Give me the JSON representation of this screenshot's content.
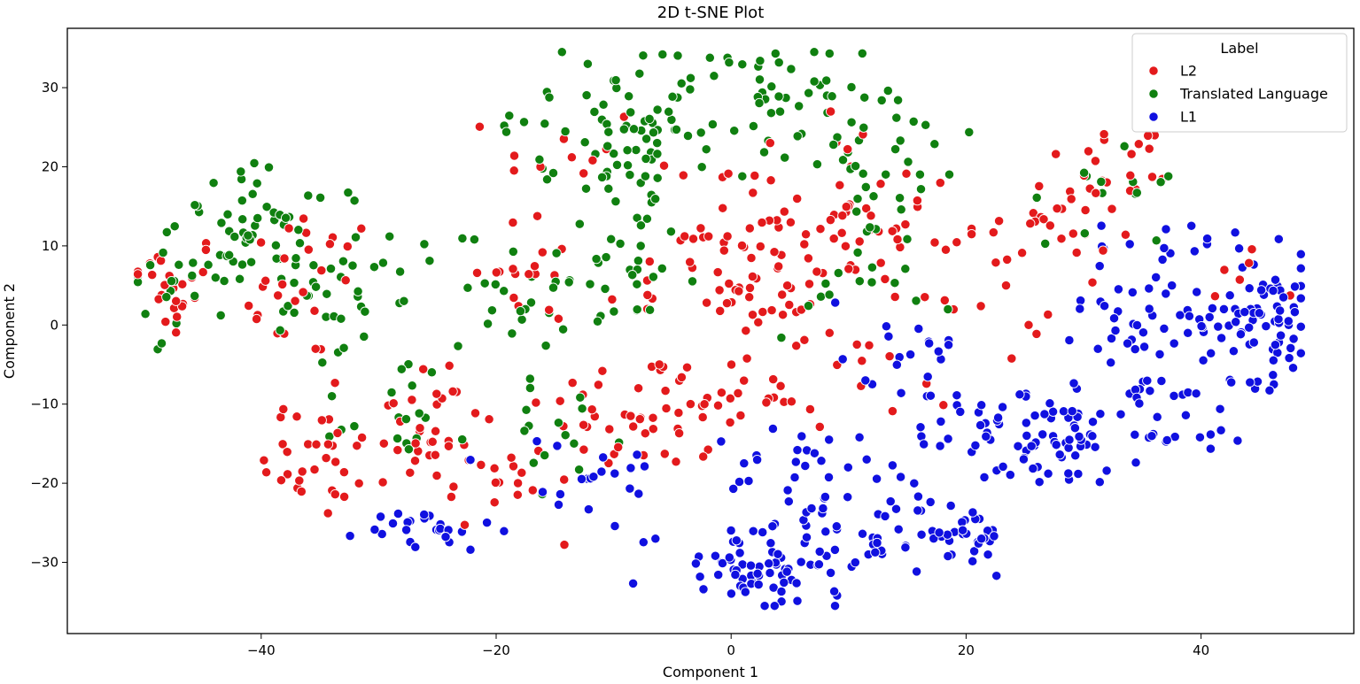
{
  "chart_data": {
    "type": "scatter",
    "title": "2D t-SNE Plot",
    "xlabel": "Component 1",
    "ylabel": "Component 2",
    "xlim": [
      -56.5,
      53
    ],
    "ylim": [
      -39,
      37.5
    ],
    "xticks": [
      -40,
      -20,
      0,
      20,
      40
    ],
    "yticks": [
      -30,
      -20,
      -10,
      0,
      10,
      20,
      30
    ],
    "grid": false,
    "legend": {
      "title": "Label",
      "placement": "top-right",
      "entries": [
        "L2",
        "Translated Language",
        "L1"
      ]
    },
    "series": [
      {
        "name": "L2",
        "color": "#e31a1c",
        "clusters": [
          {
            "cx": -48,
            "cy": 5,
            "sx": 2.5,
            "sy": 3.5,
            "n": 25
          },
          {
            "cx": -36,
            "cy": 5,
            "sx": 3,
            "sy": 5,
            "n": 25
          },
          {
            "cx": -35,
            "cy": -17,
            "sx": 2.5,
            "sy": 4,
            "n": 30
          },
          {
            "cx": -26,
            "cy": -13,
            "sx": 3,
            "sy": 5,
            "n": 35
          },
          {
            "cx": -20,
            "cy": -20,
            "sx": 2.5,
            "sy": 3,
            "n": 15
          },
          {
            "cx": -17,
            "cy": 6,
            "sx": 3,
            "sy": 3,
            "n": 15
          },
          {
            "cx": -8,
            "cy": -11,
            "sx": 4,
            "sy": 4,
            "n": 40
          },
          {
            "cx": -14,
            "cy": 20,
            "sx": 3,
            "sy": 5,
            "n": 12
          },
          {
            "cx": -4,
            "cy": 5,
            "sx": 4,
            "sy": 4,
            "n": 15
          },
          {
            "cx": 0,
            "cy": -8,
            "sx": 3,
            "sy": 4,
            "n": 25
          },
          {
            "cx": 3,
            "cy": 13,
            "sx": 4,
            "sy": 6,
            "n": 30
          },
          {
            "cx": 10,
            "cy": 12,
            "sx": 5,
            "sy": 6,
            "n": 45
          },
          {
            "cx": 2,
            "cy": 5,
            "sx": 3,
            "sy": 3,
            "n": 20
          },
          {
            "cx": 12,
            "cy": -5,
            "sx": 4,
            "sy": 4,
            "n": 15
          },
          {
            "cx": 20,
            "cy": 5,
            "sx": 4,
            "sy": 5,
            "n": 20
          },
          {
            "cx": 28,
            "cy": 14,
            "sx": 3,
            "sy": 3,
            "n": 25
          },
          {
            "cx": 34,
            "cy": 20,
            "sx": 3,
            "sy": 3,
            "n": 15
          },
          {
            "cx": 42,
            "cy": 6,
            "sx": 2,
            "sy": 2,
            "n": 6
          }
        ]
      },
      {
        "name": "Translated Language",
        "color": "#108010",
        "clusters": [
          {
            "cx": -46,
            "cy": 7,
            "sx": 3,
            "sy": 4,
            "n": 30
          },
          {
            "cx": -39,
            "cy": 12,
            "sx": 4,
            "sy": 4,
            "n": 45
          },
          {
            "cx": -34,
            "cy": 2,
            "sx": 3,
            "sy": 4,
            "n": 25
          },
          {
            "cx": -28,
            "cy": -10,
            "sx": 3,
            "sy": 4,
            "n": 20
          },
          {
            "cx": -25,
            "cy": 8,
            "sx": 3,
            "sy": 3,
            "n": 10
          },
          {
            "cx": -17,
            "cy": 3,
            "sx": 3,
            "sy": 3,
            "n": 25
          },
          {
            "cx": -13,
            "cy": 25,
            "sx": 4,
            "sy": 4,
            "n": 25
          },
          {
            "cx": -6,
            "cy": 25,
            "sx": 4,
            "sy": 6,
            "n": 55
          },
          {
            "cx": 3,
            "cy": 28,
            "sx": 4,
            "sy": 4,
            "n": 40
          },
          {
            "cx": 13,
            "cy": 20,
            "sx": 4,
            "sy": 6,
            "n": 35
          },
          {
            "cx": -9,
            "cy": 10,
            "sx": 3,
            "sy": 5,
            "n": 25
          },
          {
            "cx": 33,
            "cy": 18,
            "sx": 3,
            "sy": 4,
            "n": 15
          },
          {
            "cx": -14,
            "cy": -14,
            "sx": 3,
            "sy": 3,
            "n": 15
          },
          {
            "cx": 9,
            "cy": 5,
            "sx": 3,
            "sy": 3,
            "n": 15
          }
        ]
      },
      {
        "name": "L1",
        "color": "#1010e0",
        "clusters": [
          {
            "cx": -26,
            "cy": -26,
            "sx": 3,
            "sy": 1.5,
            "n": 25
          },
          {
            "cx": -12,
            "cy": -20,
            "sx": 4,
            "sy": 3,
            "n": 20
          },
          {
            "cx": 0,
            "cy": -30,
            "sx": 4,
            "sy": 2.5,
            "n": 35
          },
          {
            "cx": 5,
            "cy": -30,
            "sx": 3,
            "sy": 3.5,
            "n": 40
          },
          {
            "cx": 6,
            "cy": -20,
            "sx": 3,
            "sy": 4,
            "n": 30
          },
          {
            "cx": 13,
            "cy": -24,
            "sx": 3,
            "sy": 4,
            "n": 25
          },
          {
            "cx": 19,
            "cy": -27,
            "sx": 2.5,
            "sy": 2.5,
            "n": 35
          },
          {
            "cx": 20,
            "cy": -12,
            "sx": 4,
            "sy": 4,
            "n": 25
          },
          {
            "cx": 27,
            "cy": -15,
            "sx": 4,
            "sy": 3,
            "n": 45
          },
          {
            "cx": 35,
            "cy": -12,
            "sx": 5,
            "sy": 3,
            "n": 45
          },
          {
            "cx": 34,
            "cy": 1,
            "sx": 3,
            "sy": 3,
            "n": 30
          },
          {
            "cx": 45,
            "cy": 1,
            "sx": 3,
            "sy": 4,
            "n": 85
          },
          {
            "cx": 37,
            "cy": 10,
            "sx": 3,
            "sy": 2,
            "n": 15
          },
          {
            "cx": 15,
            "cy": -2,
            "sx": 3,
            "sy": 3,
            "n": 15
          }
        ]
      }
    ]
  }
}
